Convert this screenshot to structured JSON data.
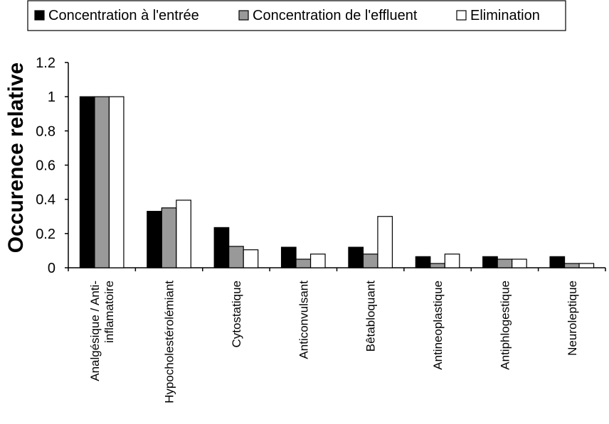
{
  "chart_data": {
    "type": "bar",
    "title": "",
    "xlabel": "",
    "ylabel": "Occurence relative",
    "ylim": [
      0,
      1.2
    ],
    "yticks": [
      "0",
      "0.2",
      "0.4",
      "0.6",
      "0.8",
      "1",
      "1.2"
    ],
    "ytick_values": [
      0,
      0.2,
      0.4,
      0.6,
      0.8,
      1,
      1.2
    ],
    "grid": false,
    "legend_position": "top-left",
    "categories": [
      [
        "Analgésique / Anti-",
        "inflamatoire"
      ],
      [
        "Hypocholestérolémiant"
      ],
      [
        "Cytostatique"
      ],
      [
        "Anticonvulsant"
      ],
      [
        "Bêtabloquant"
      ],
      [
        "Antineoplastique"
      ],
      [
        "Antiphlogestique"
      ],
      [
        "Neuroleptique"
      ]
    ],
    "series": [
      {
        "name": "Concentration à l'entrée",
        "color": "#000000",
        "values": [
          1.0,
          0.33,
          0.235,
          0.12,
          0.12,
          0.065,
          0.065,
          0.065
        ]
      },
      {
        "name": "Concentration de l'effluent",
        "color": "#999999",
        "values": [
          1.0,
          0.35,
          0.125,
          0.05,
          0.08,
          0.025,
          0.05,
          0.025
        ]
      },
      {
        "name": "Elimination",
        "color": "#ffffff",
        "values": [
          1.0,
          0.395,
          0.105,
          0.08,
          0.3,
          0.08,
          0.05,
          0.025
        ]
      }
    ]
  }
}
